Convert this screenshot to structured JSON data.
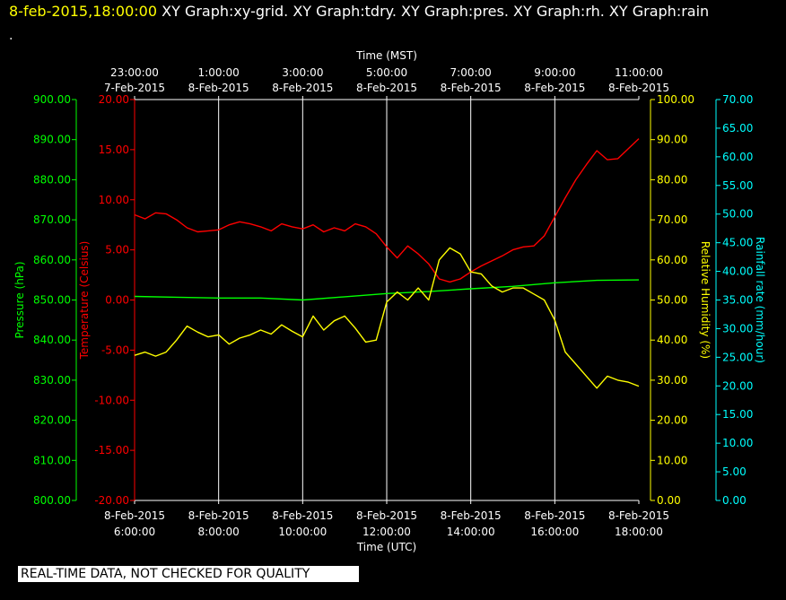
{
  "header": {
    "timestamp": "8-feb-2015,18:00:00",
    "title": " XY Graph:xy-grid.  XY Graph:tdry.  XY Graph:pres.  XY Graph:rh.  XY Graph:rain",
    "dot": "."
  },
  "banner": "REAL-TIME DATA, NOT CHECKED FOR QUALITY",
  "colors": {
    "background": "#000000",
    "grid": "#ffffff",
    "temperature": "#ff0000",
    "pressure": "#00ff00",
    "humidity": "#ffff00",
    "rain": "#00ffff"
  },
  "chart_data": {
    "type": "line",
    "x_top": {
      "label": "Time (MST)",
      "ticks": [
        {
          "time": "23:00:00",
          "date": "7-Feb-2015"
        },
        {
          "time": "1:00:00",
          "date": "8-Feb-2015"
        },
        {
          "time": "3:00:00",
          "date": "8-Feb-2015"
        },
        {
          "time": "5:00:00",
          "date": "8-Feb-2015"
        },
        {
          "time": "7:00:00",
          "date": "8-Feb-2015"
        },
        {
          "time": "9:00:00",
          "date": "8-Feb-2015"
        },
        {
          "time": "11:00:00",
          "date": "8-Feb-2015"
        }
      ]
    },
    "x_bottom": {
      "label": "Time (UTC)",
      "xlim": [
        "2015-02-08 06:00",
        "2015-02-08 18:00"
      ],
      "ticks": [
        {
          "date": "8-Feb-2015",
          "time": "6:00:00"
        },
        {
          "date": "8-Feb-2015",
          "time": "8:00:00"
        },
        {
          "date": "8-Feb-2015",
          "time": "10:00:00"
        },
        {
          "date": "8-Feb-2015",
          "time": "12:00:00"
        },
        {
          "date": "8-Feb-2015",
          "time": "14:00:00"
        },
        {
          "date": "8-Feb-2015",
          "time": "16:00:00"
        },
        {
          "date": "8-Feb-2015",
          "time": "18:00:00"
        }
      ]
    },
    "axes": {
      "pressure": {
        "label": "Pressure (hPa)",
        "ylim": [
          800,
          900
        ],
        "ticks": [
          "800.00",
          "810.00",
          "820.00",
          "830.00",
          "840.00",
          "850.00",
          "860.00",
          "870.00",
          "880.00",
          "890.00",
          "900.00"
        ]
      },
      "temperature": {
        "label": "Temperature (Celsius)",
        "ylim": [
          -20,
          20
        ],
        "ticks": [
          "-20.00",
          "-15.00",
          "-10.00",
          "-5.00",
          "0.00",
          "5.00",
          "10.00",
          "15.00",
          "20.00"
        ]
      },
      "humidity": {
        "label": "Relative Humidity (%)",
        "ylim": [
          0,
          100
        ],
        "ticks": [
          "0.00",
          "10.00",
          "20.00",
          "30.00",
          "40.00",
          "50.00",
          "60.00",
          "70.00",
          "80.00",
          "90.00",
          "100.00"
        ]
      },
      "rain": {
        "label": "Rainfall rate (mm/hour)",
        "ylim": [
          0,
          70
        ],
        "ticks": [
          "0.00",
          "5.00",
          "10.00",
          "15.00",
          "20.00",
          "25.00",
          "30.00",
          "35.00",
          "40.00",
          "45.00",
          "50.00",
          "55.00",
          "60.00",
          "65.00",
          "70.00"
        ]
      }
    },
    "grid": "vertical",
    "series": [
      {
        "key": "temperature",
        "axis": "temperature",
        "x": [
          6.0,
          6.25,
          6.5,
          6.75,
          7.0,
          7.25,
          7.5,
          7.75,
          8.0,
          8.25,
          8.5,
          8.75,
          9.0,
          9.25,
          9.5,
          9.75,
          10.0,
          10.25,
          10.5,
          10.75,
          11.0,
          11.25,
          11.5,
          11.75,
          12.0,
          12.25,
          12.5,
          12.75,
          13.0,
          13.25,
          13.5,
          13.75,
          14.0,
          14.25,
          14.5,
          14.75,
          15.0,
          15.25,
          15.5,
          15.75,
          16.0,
          16.25,
          16.5,
          16.75,
          17.0,
          17.25,
          17.5,
          17.75,
          18.0
        ],
        "y": [
          8.5,
          8.1,
          8.7,
          8.6,
          8.0,
          7.2,
          6.8,
          6.9,
          7.0,
          7.5,
          7.8,
          7.6,
          7.3,
          6.9,
          7.6,
          7.3,
          7.1,
          7.5,
          6.8,
          7.2,
          6.9,
          7.6,
          7.3,
          6.6,
          5.3,
          4.2,
          5.4,
          4.6,
          3.6,
          2.1,
          1.8,
          2.1,
          2.8,
          3.4,
          3.9,
          4.4,
          5.0,
          5.3,
          5.4,
          6.4,
          8.3,
          10.2,
          12.0,
          13.5,
          14.9,
          14.0,
          14.1,
          15.1,
          16.1
        ]
      },
      {
        "key": "pressure",
        "axis": "pressure",
        "x": [
          6.0,
          7.0,
          8.0,
          9.0,
          10.0,
          11.0,
          12.0,
          13.0,
          14.0,
          15.0,
          16.0,
          17.0,
          18.0
        ],
        "y": [
          850.9,
          850.7,
          850.5,
          850.5,
          850.0,
          850.8,
          851.6,
          852.1,
          852.8,
          853.4,
          854.3,
          854.9,
          855.0
        ]
      },
      {
        "key": "humidity",
        "axis": "humidity",
        "x": [
          6.0,
          6.25,
          6.5,
          6.75,
          7.0,
          7.25,
          7.5,
          7.75,
          8.0,
          8.25,
          8.5,
          8.75,
          9.0,
          9.25,
          9.5,
          9.75,
          10.0,
          10.25,
          10.5,
          10.75,
          11.0,
          11.25,
          11.5,
          11.75,
          12.0,
          12.25,
          12.5,
          12.75,
          13.0,
          13.25,
          13.5,
          13.75,
          14.0,
          14.25,
          14.5,
          14.75,
          15.0,
          15.25,
          15.5,
          15.75,
          16.0,
          16.25,
          16.5,
          16.75,
          17.0,
          17.25,
          17.5,
          17.75,
          18.0
        ],
        "y": [
          36.2,
          37.0,
          36.0,
          37.0,
          40.0,
          43.5,
          42.0,
          40.8,
          41.3,
          39.0,
          40.5,
          41.3,
          42.5,
          41.5,
          43.8,
          42.2,
          40.8,
          46.0,
          42.5,
          44.8,
          46.0,
          43.0,
          39.5,
          40.0,
          49.5,
          52.0,
          50.0,
          53.0,
          50.0,
          60.0,
          63.0,
          61.5,
          57.0,
          56.5,
          53.5,
          52.0,
          53.0,
          53.0,
          51.5,
          50.0,
          45.0,
          37.0,
          34.0,
          31.0,
          28.0,
          31.0,
          30.0,
          29.5,
          28.5
        ]
      }
    ]
  }
}
